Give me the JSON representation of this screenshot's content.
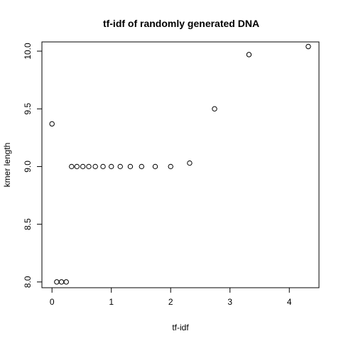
{
  "chart_data": {
    "type": "scatter",
    "title": "tf-idf of randomly generated DNA",
    "xlabel": "tf-idf",
    "ylabel": "kmer length",
    "xlim": [
      -0.17,
      4.5
    ],
    "ylim": [
      7.95,
      10.08
    ],
    "xticks": [
      0,
      1,
      2,
      3,
      4
    ],
    "yticks": [
      8.0,
      8.5,
      9.0,
      9.5,
      10.0
    ],
    "xtick_labels": [
      "0",
      "1",
      "2",
      "3",
      "4"
    ],
    "ytick_labels": [
      "8.0",
      "8.5",
      "9.0",
      "9.5",
      "10.0"
    ],
    "grid": false,
    "marker": "open-circle",
    "points": [
      {
        "x": 0.0,
        "y": 9.37
      },
      {
        "x": 0.08,
        "y": 8.0
      },
      {
        "x": 0.16,
        "y": 8.0
      },
      {
        "x": 0.24,
        "y": 8.0
      },
      {
        "x": 0.33,
        "y": 9.0
      },
      {
        "x": 0.42,
        "y": 9.0
      },
      {
        "x": 0.52,
        "y": 9.0
      },
      {
        "x": 0.62,
        "y": 9.0
      },
      {
        "x": 0.73,
        "y": 9.0
      },
      {
        "x": 0.86,
        "y": 9.0
      },
      {
        "x": 1.0,
        "y": 9.0
      },
      {
        "x": 1.15,
        "y": 9.0
      },
      {
        "x": 1.32,
        "y": 9.0
      },
      {
        "x": 1.51,
        "y": 9.0
      },
      {
        "x": 1.74,
        "y": 9.0
      },
      {
        "x": 2.0,
        "y": 9.0
      },
      {
        "x": 2.32,
        "y": 9.03
      },
      {
        "x": 2.74,
        "y": 9.5
      },
      {
        "x": 3.32,
        "y": 9.97
      },
      {
        "x": 4.32,
        "y": 10.04
      }
    ]
  }
}
